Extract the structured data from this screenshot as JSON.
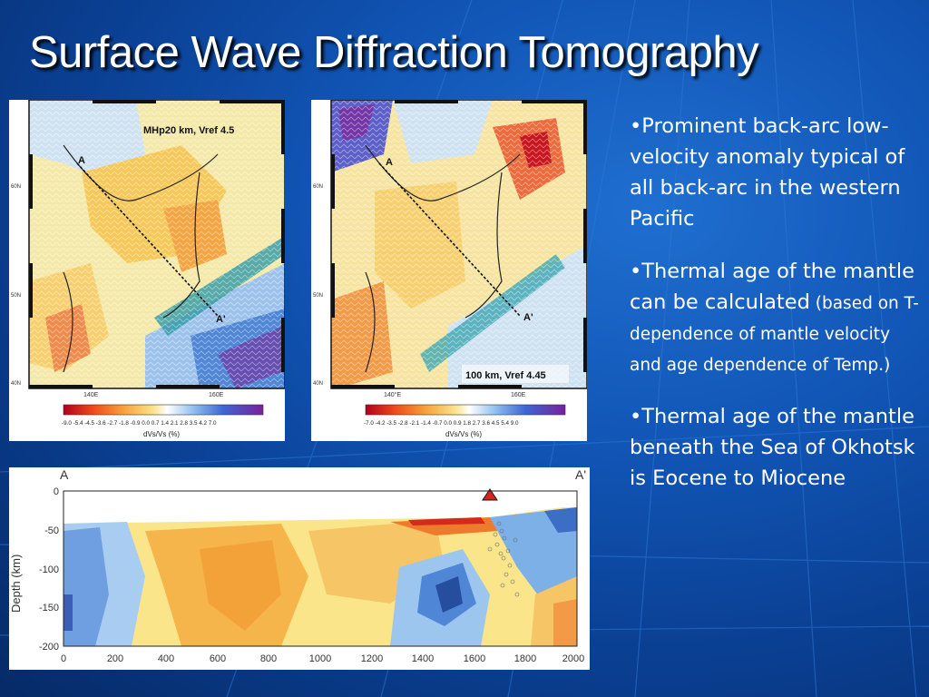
{
  "slide": {
    "title": "Surface Wave Diffraction Tomography",
    "bullets": [
      {
        "text": "•Prominent back-arc low-velocity anomaly typical of all back-arc in the western Pacific"
      },
      {
        "text": "•Thermal age of the mantle can be calculated",
        "small": " (based on T-dependence of mantle velocity and age dependence of Temp.)"
      },
      {
        "text": "•Thermal age of the mantle beneath the Sea of Okhotsk is Eocene to Miocene"
      }
    ]
  },
  "map_left": {
    "label": "MHp20 km, Vref 4.5",
    "point_a": "A",
    "point_a_prime": "A'",
    "lat_ticks": [
      "60N",
      "50N",
      "40N"
    ],
    "lon_ticks": [
      "140E",
      "160E"
    ],
    "scale_values": "-9.0 -5.4 -4.5 -3.6 -2.7 -1.8 -0.9 0.0 0.7 1.4 2.1 2.8 3.5 4.2 7.0",
    "scale_title": "dVs/Vs (%)"
  },
  "map_right": {
    "label": "100 km, Vref 4.45",
    "point_a": "A",
    "point_a_prime": "A'",
    "lat_ticks": [
      "60N",
      "50N",
      "40N"
    ],
    "lon_ticks": [
      "140°E",
      "160E"
    ],
    "scale_values": "-7.0 -4.2 -3.5 -2.8 -2.1 -1.4 -0.7 0.0 0.9 1.8 2.7 3.6 4.5 5.4 9.0",
    "scale_title": "dVs/Vs (%)"
  },
  "cross_section": {
    "label_a": "A",
    "label_a_prime": "A'",
    "y_axis_title": "Depth (km)",
    "y_ticks": [
      "0",
      "-50",
      "-100",
      "-150",
      "-200"
    ],
    "x_ticks": [
      "0",
      "200",
      "400",
      "600",
      "800",
      "1000",
      "1200",
      "1400",
      "1600",
      "1800",
      "2000"
    ]
  },
  "colors": {
    "background": "#0a3f92",
    "slow_anomaly": "#f2b73a",
    "fast_anomaly": "#4f86d6"
  }
}
